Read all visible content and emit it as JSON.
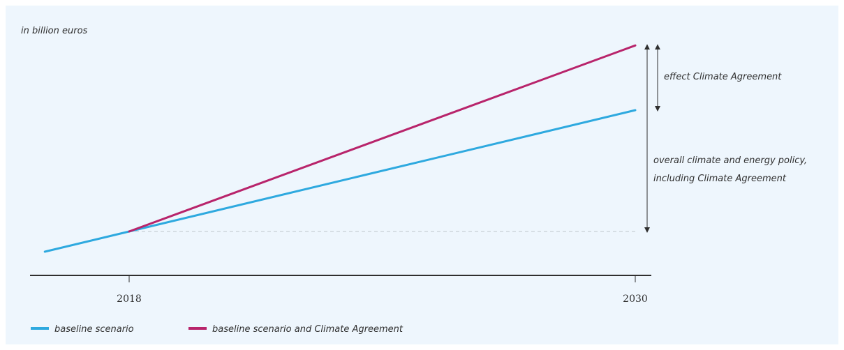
{
  "chart_data": {
    "type": "line",
    "unit_label": "in billion euros",
    "x_ticks": [
      "2018",
      "2030"
    ],
    "series": [
      {
        "name": "baseline scenario",
        "color": "#2ea9df",
        "points": [
          [
            2016,
            0.0
          ],
          [
            2018,
            1.0
          ],
          [
            2030,
            7.0
          ]
        ]
      },
      {
        "name": "baseline scenario and Climate Agreement",
        "color": "#b8246b",
        "points": [
          [
            2018,
            1.0
          ],
          [
            2030,
            10.2
          ]
        ]
      }
    ],
    "reference_line": {
      "from_x": 2018,
      "value": 1.0,
      "style": "dashed"
    },
    "annotations": [
      {
        "text": "effect Climate Agreement"
      },
      {
        "line1": "overall climate and energy policy,",
        "line2": "including Climate Agreement"
      }
    ],
    "xlabel": "",
    "ylabel": ""
  }
}
